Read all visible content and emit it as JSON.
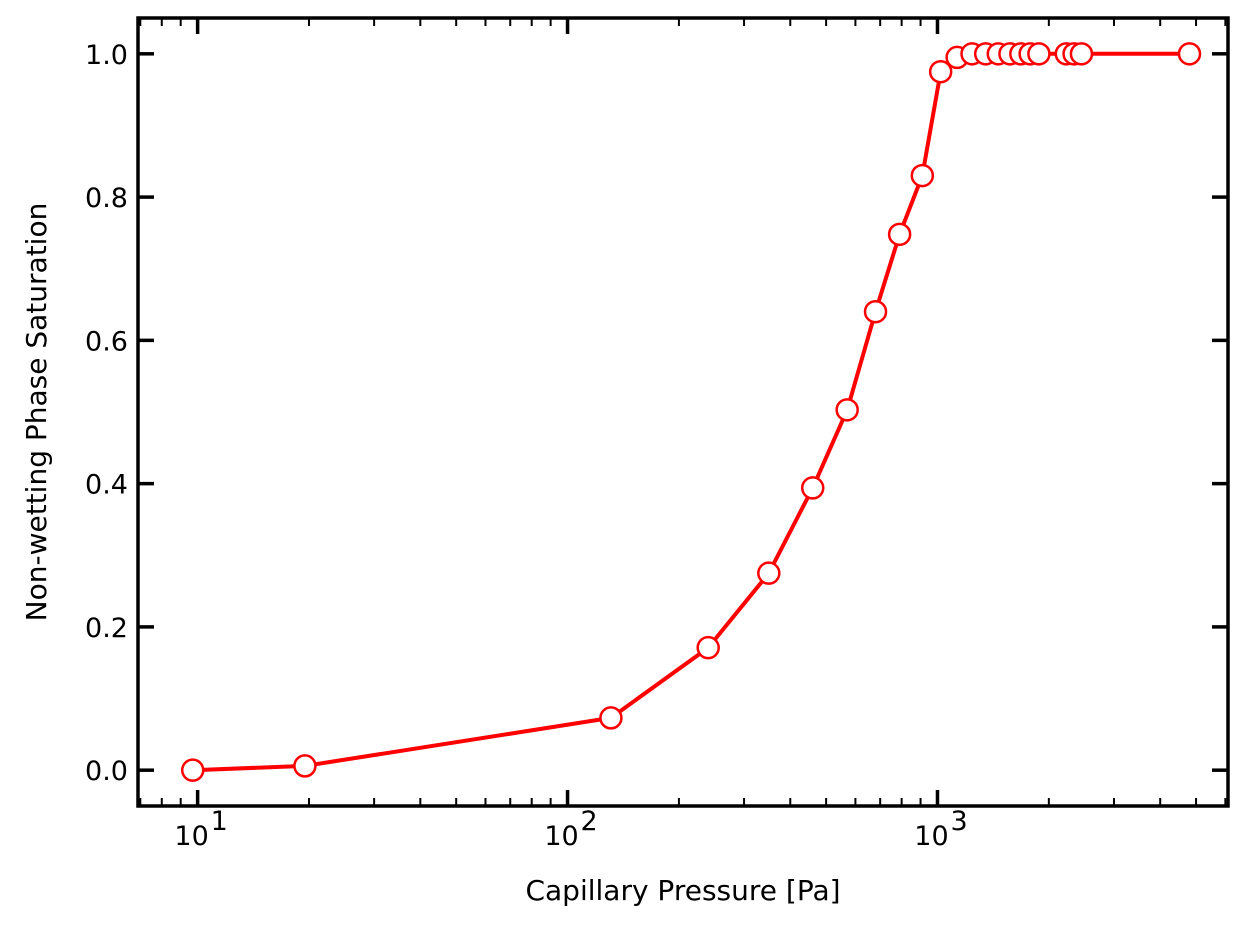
{
  "chart_data": {
    "type": "line",
    "title": "",
    "xlabel": "Capillary Pressure [Pa]",
    "ylabel": "Non-wetting Phase Saturation",
    "xscale": "log",
    "xlim": [
      6.9,
      6100
    ],
    "ylim": [
      -0.05,
      1.05
    ],
    "grid": false,
    "legend": "none",
    "x_ticks": [
      {
        "value": 10,
        "base": "10",
        "exp": "1"
      },
      {
        "value": 100,
        "base": "10",
        "exp": "2"
      },
      {
        "value": 1000,
        "base": "10",
        "exp": "3"
      }
    ],
    "y_ticks": [
      "0.0",
      "0.2",
      "0.4",
      "0.6",
      "0.8",
      "1.0"
    ],
    "colors": {
      "line": "#ff0000",
      "marker_fill": "#ffffff",
      "axes": "#000000"
    },
    "series": [
      {
        "x": [
          9.7,
          19.5,
          131,
          240,
          350,
          460,
          570,
          680,
          790,
          910,
          1020,
          1130,
          1240,
          1350,
          1460,
          1570,
          1680,
          1780,
          1880,
          2230,
          2340,
          2450,
          4800
        ],
        "y": [
          0.0,
          0.006,
          0.073,
          0.171,
          0.275,
          0.394,
          0.503,
          0.64,
          0.748,
          0.83,
          0.975,
          0.995,
          1.0,
          1.0,
          1.0,
          1.0,
          1.0,
          1.0,
          1.0,
          1.0,
          1.0,
          1.0,
          1.0
        ]
      }
    ]
  }
}
